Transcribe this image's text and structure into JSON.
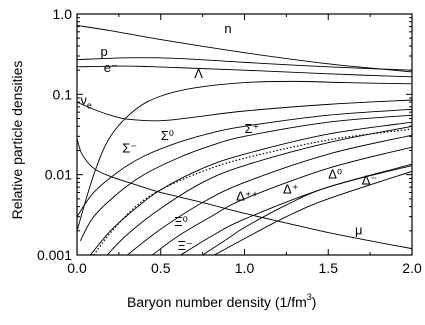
{
  "chart_data": {
    "type": "line",
    "xlabel": "Baryon number density  (1/fm",
    "xlabel_sup": "3",
    "xlabel_tail": ")",
    "ylabel": "Relative particle densities",
    "xlim": [
      0.0,
      2.0
    ],
    "ylim": [
      0.001,
      1.0
    ],
    "yscale": "log",
    "grid": false,
    "x_ticks": [
      {
        "value": 0.0,
        "label": "0.0"
      },
      {
        "value": 0.5,
        "label": "0.5"
      },
      {
        "value": 1.0,
        "label": "1.0"
      },
      {
        "value": 1.5,
        "label": "1.5"
      },
      {
        "value": 2.0,
        "label": "2.0"
      }
    ],
    "y_ticks": [
      {
        "value": 1.0,
        "label": "1.0"
      },
      {
        "value": 0.1,
        "label": "0.1"
      },
      {
        "value": 0.01,
        "label": "0.01"
      },
      {
        "value": 0.001,
        "label": "0.001"
      }
    ],
    "series": [
      {
        "name": "n",
        "dash": false,
        "x": [
          0.0,
          0.2,
          0.5,
          1.0,
          1.5,
          2.0
        ],
        "y": [
          0.72,
          0.62,
          0.48,
          0.33,
          0.24,
          0.19
        ]
      },
      {
        "name": "p",
        "dash": false,
        "x": [
          0.0,
          0.3,
          0.6,
          1.0,
          1.5,
          2.0
        ],
        "y": [
          0.27,
          0.285,
          0.28,
          0.25,
          0.22,
          0.2
        ]
      },
      {
        "name": "e⁻",
        "dash": false,
        "x": [
          0.0,
          0.3,
          0.6,
          1.0,
          1.5,
          2.0
        ],
        "y": [
          0.22,
          0.225,
          0.215,
          0.2,
          0.18,
          0.165
        ]
      },
      {
        "name": "Λ",
        "dash": false,
        "x": [
          0.0,
          0.1,
          0.2,
          0.35,
          0.5,
          0.7,
          1.0,
          1.3,
          1.6,
          2.0
        ],
        "y": [
          0.002,
          0.01,
          0.03,
          0.065,
          0.095,
          0.12,
          0.14,
          0.145,
          0.14,
          0.135
        ]
      },
      {
        "name": "νe",
        "dash": false,
        "x": [
          0.0,
          0.1,
          0.2,
          0.3,
          0.5,
          0.7,
          1.0,
          1.5,
          2.0
        ],
        "y": [
          0.08,
          0.065,
          0.055,
          0.049,
          0.047,
          0.052,
          0.062,
          0.075,
          0.085
        ]
      },
      {
        "name": "Σ⁻",
        "dash": false,
        "x": [
          0.0,
          0.1,
          0.25,
          0.4,
          0.6,
          0.8,
          1.0,
          1.5,
          2.0
        ],
        "y": [
          0.003,
          0.006,
          0.011,
          0.017,
          0.025,
          0.033,
          0.04,
          0.055,
          0.065
        ]
      },
      {
        "name": "Σ⁰",
        "dash": false,
        "x": [
          0.02,
          0.1,
          0.25,
          0.4,
          0.6,
          0.8,
          1.0,
          1.5,
          2.0
        ],
        "y": [
          0.0015,
          0.003,
          0.006,
          0.01,
          0.016,
          0.023,
          0.03,
          0.045,
          0.055
        ]
      },
      {
        "name": "Σ⁺",
        "dash": false,
        "x": [
          0.08,
          0.2,
          0.35,
          0.5,
          0.75,
          1.0,
          1.5,
          2.0
        ],
        "y": [
          0.001,
          0.002,
          0.0038,
          0.0065,
          0.012,
          0.018,
          0.032,
          0.045
        ]
      },
      {
        "name": "Δ⁻",
        "dash": false,
        "x": [
          0.18,
          0.3,
          0.5,
          0.75,
          1.0,
          1.5,
          2.0
        ],
        "y": [
          0.001,
          0.0018,
          0.0038,
          0.008,
          0.013,
          0.025,
          0.04
        ]
      },
      {
        "name": "Δ⁰",
        "dash": false,
        "x": [
          0.3,
          0.5,
          0.75,
          1.0,
          1.5,
          2.0
        ],
        "y": [
          0.001,
          0.0021,
          0.0045,
          0.008,
          0.018,
          0.031
        ]
      },
      {
        "name": "Δ⁺",
        "dash": false,
        "x": [
          0.45,
          0.6,
          0.8,
          1.0,
          1.5,
          2.0
        ],
        "y": [
          0.001,
          0.0017,
          0.003,
          0.005,
          0.012,
          0.022
        ]
      },
      {
        "name": "Δ⁺⁺",
        "dash": false,
        "x": [
          0.62,
          0.8,
          1.0,
          1.5,
          2.0
        ],
        "y": [
          0.001,
          0.0017,
          0.0028,
          0.007,
          0.013
        ]
      },
      {
        "name": "Ξ⁰",
        "dash": false,
        "x": [
          0.75,
          0.9,
          1.0,
          1.25,
          1.5,
          2.0
        ],
        "y": [
          0.001,
          0.0016,
          0.0022,
          0.0042,
          0.007,
          0.0135
        ]
      },
      {
        "name": "Ξ⁻",
        "dash": false,
        "x": [
          0.82,
          1.0,
          1.25,
          1.5,
          2.0
        ],
        "y": [
          0.001,
          0.0016,
          0.003,
          0.005,
          0.011
        ]
      },
      {
        "name": "μ",
        "dash": false,
        "x": [
          0.0,
          0.03,
          0.1,
          0.2,
          0.35,
          0.5,
          0.75,
          1.0,
          1.25,
          1.5,
          1.75,
          2.0
        ],
        "y": [
          0.028,
          0.018,
          0.012,
          0.0095,
          0.0075,
          0.006,
          0.0045,
          0.0033,
          0.0025,
          0.0019,
          0.0015,
          0.0012
        ]
      },
      {
        "name": "",
        "dash": true,
        "x": [
          0.1,
          0.2,
          0.35,
          0.5,
          0.75,
          1.0,
          1.5,
          2.0
        ],
        "y": [
          0.001,
          0.0019,
          0.004,
          0.0065,
          0.011,
          0.016,
          0.027,
          0.037
        ]
      }
    ],
    "annotations": [
      {
        "text": "n",
        "x": 0.88,
        "y": 0.58
      },
      {
        "text": "p",
        "x": 0.14,
        "y": 0.3
      },
      {
        "text": "e⁻",
        "x": 0.16,
        "y": 0.19
      },
      {
        "text": "Λ",
        "x": 0.7,
        "y": 0.16
      },
      {
        "text": "ν",
        "sub": "e",
        "x": 0.02,
        "y": 0.075
      },
      {
        "text": "Σ⁰",
        "x": 0.5,
        "y": 0.027
      },
      {
        "text": "Σ⁻",
        "x": 0.27,
        "y": 0.019
      },
      {
        "text": "Σ⁺",
        "x": 1.0,
        "y": 0.033
      },
      {
        "text": "Δ⁰",
        "x": 1.5,
        "y": 0.009
      },
      {
        "text": "Δ⁻",
        "x": 1.7,
        "y": 0.0075
      },
      {
        "text": "Δ⁺",
        "x": 1.23,
        "y": 0.0058
      },
      {
        "text": "Δ⁺⁺",
        "x": 0.95,
        "y": 0.0048
      },
      {
        "text": "Ξ⁰",
        "x": 0.58,
        "y": 0.0023
      },
      {
        "text": "Ξ⁻",
        "x": 0.6,
        "y": 0.00115
      },
      {
        "text": "μ",
        "x": 1.66,
        "y": 0.0018
      }
    ]
  }
}
